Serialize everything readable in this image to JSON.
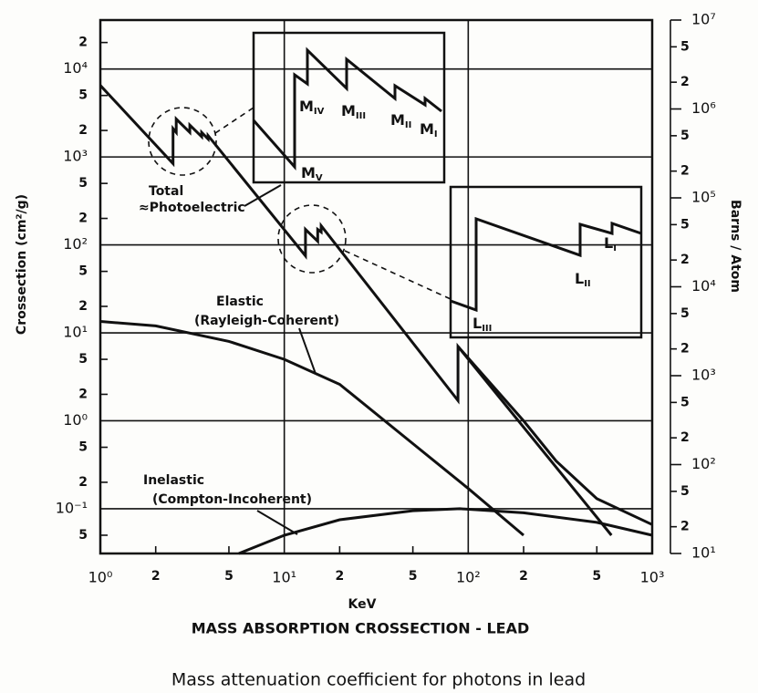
{
  "chart_data": {
    "type": "line",
    "title": "MASS ABSORPTION CROSSECTION - LEAD",
    "caption": "Mass attenuation coefficient for photons in lead",
    "xlabel": "KeV",
    "ylabel": "Crossection (cm²/g)",
    "y2label": "Barns / Atom",
    "xscale": "log",
    "yscale": "log",
    "y2scale": "log",
    "grid": true,
    "xlim": [
      1,
      1000
    ],
    "ylim": [
      0.031,
      36000
    ],
    "y2lim": [
      10,
      10000000
    ],
    "xticks": [
      {
        "value": 1,
        "label": "10⁰"
      },
      {
        "value": 10,
        "label": "10¹"
      },
      {
        "value": 100,
        "label": "10²"
      },
      {
        "value": 1000,
        "label": "10³"
      }
    ],
    "xminor": [
      {
        "value": 2,
        "label": "2"
      },
      {
        "value": 5,
        "label": "5"
      },
      {
        "value": 20,
        "label": "2"
      },
      {
        "value": 50,
        "label": "5"
      },
      {
        "value": 200,
        "label": "2"
      },
      {
        "value": 500,
        "label": "5"
      }
    ],
    "yticks": [
      {
        "value": 0.1,
        "label": "10⁻¹"
      },
      {
        "value": 1,
        "label": "10⁰"
      },
      {
        "value": 10,
        "label": "10¹"
      },
      {
        "value": 100,
        "label": "10²"
      },
      {
        "value": 1000,
        "label": "10³"
      },
      {
        "value": 10000,
        "label": "10⁴"
      }
    ],
    "yminor": [
      {
        "value": 0.05,
        "label": "5"
      },
      {
        "value": 0.2,
        "label": "2"
      },
      {
        "value": 0.5,
        "label": "5"
      },
      {
        "value": 2,
        "label": "2"
      },
      {
        "value": 5,
        "label": "5"
      },
      {
        "value": 20,
        "label": "2"
      },
      {
        "value": 50,
        "label": "5"
      },
      {
        "value": 200,
        "label": "2"
      },
      {
        "value": 500,
        "label": "5"
      },
      {
        "value": 2000,
        "label": "2"
      },
      {
        "value": 5000,
        "label": "5"
      },
      {
        "value": 20000,
        "label": "2"
      }
    ],
    "y2ticks": [
      {
        "value": 10,
        "label": "10¹"
      },
      {
        "value": 100,
        "label": "10²"
      },
      {
        "value": 1000,
        "label": "10³"
      },
      {
        "value": 10000,
        "label": "10⁴"
      },
      {
        "value": 100000,
        "label": "10⁵"
      },
      {
        "value": 1000000,
        "label": "10⁶"
      },
      {
        "value": 10000000,
        "label": "10⁷"
      }
    ],
    "y2minor": [
      {
        "value": 20,
        "label": "2"
      },
      {
        "value": 50,
        "label": "5"
      },
      {
        "value": 200,
        "label": "2"
      },
      {
        "value": 500,
        "label": "5"
      },
      {
        "value": 2000,
        "label": "2"
      },
      {
        "value": 5000,
        "label": "5"
      },
      {
        "value": 20000,
        "label": "2"
      },
      {
        "value": 50000,
        "label": "5"
      },
      {
        "value": 200000,
        "label": "2"
      },
      {
        "value": 500000,
        "label": "5"
      },
      {
        "value": 2000000,
        "label": "2"
      },
      {
        "value": 5000000,
        "label": "5"
      }
    ],
    "series": [
      {
        "name": "≈Photoelectric",
        "color": "#111111",
        "x": [
          1,
          2.484,
          2.484,
          2.586,
          2.586,
          3.066,
          3.066,
          3.554,
          3.554,
          3.851,
          3.851,
          13.04,
          13.04,
          15.2,
          15.2,
          15.86,
          15.86,
          88,
          88,
          600
        ],
        "values": [
          6500,
          840,
          2100,
          1900,
          2700,
          1900,
          2300,
          1700,
          1900,
          1600,
          1750,
          75,
          150,
          110,
          150,
          140,
          165,
          1.7,
          7,
          0.05
        ]
      },
      {
        "name": "Total",
        "color": "#111111",
        "x": [
          88,
          200,
          300,
          500,
          1000
        ],
        "values": [
          7,
          1.0,
          0.35,
          0.13,
          0.066
        ]
      },
      {
        "name": "Elastic",
        "subname": "(Rayleigh-Coherent)",
        "color": "#111111",
        "x": [
          1,
          2,
          5,
          10,
          20,
          50,
          100,
          200
        ],
        "values": [
          13.5,
          12,
          8,
          5,
          2.6,
          0.55,
          0.17,
          0.05
        ]
      },
      {
        "name": "Inelastic",
        "subname": "(Compton-Incoherent)",
        "color": "#111111",
        "x": [
          5.66,
          10,
          20,
          50,
          90,
          200,
          500,
          1000
        ],
        "values": [
          0.031,
          0.05,
          0.075,
          0.095,
          0.1,
          0.09,
          0.07,
          0.05
        ]
      }
    ],
    "inset_labels": [
      {
        "text": "M",
        "sub": "V"
      },
      {
        "text": "M",
        "sub": "IV"
      },
      {
        "text": "M",
        "sub": "III"
      },
      {
        "text": "M",
        "sub": "II"
      },
      {
        "text": "M",
        "sub": "I"
      },
      {
        "text": "L",
        "sub": "III"
      },
      {
        "text": "L",
        "sub": "II"
      },
      {
        "text": "L",
        "sub": "I"
      }
    ]
  }
}
